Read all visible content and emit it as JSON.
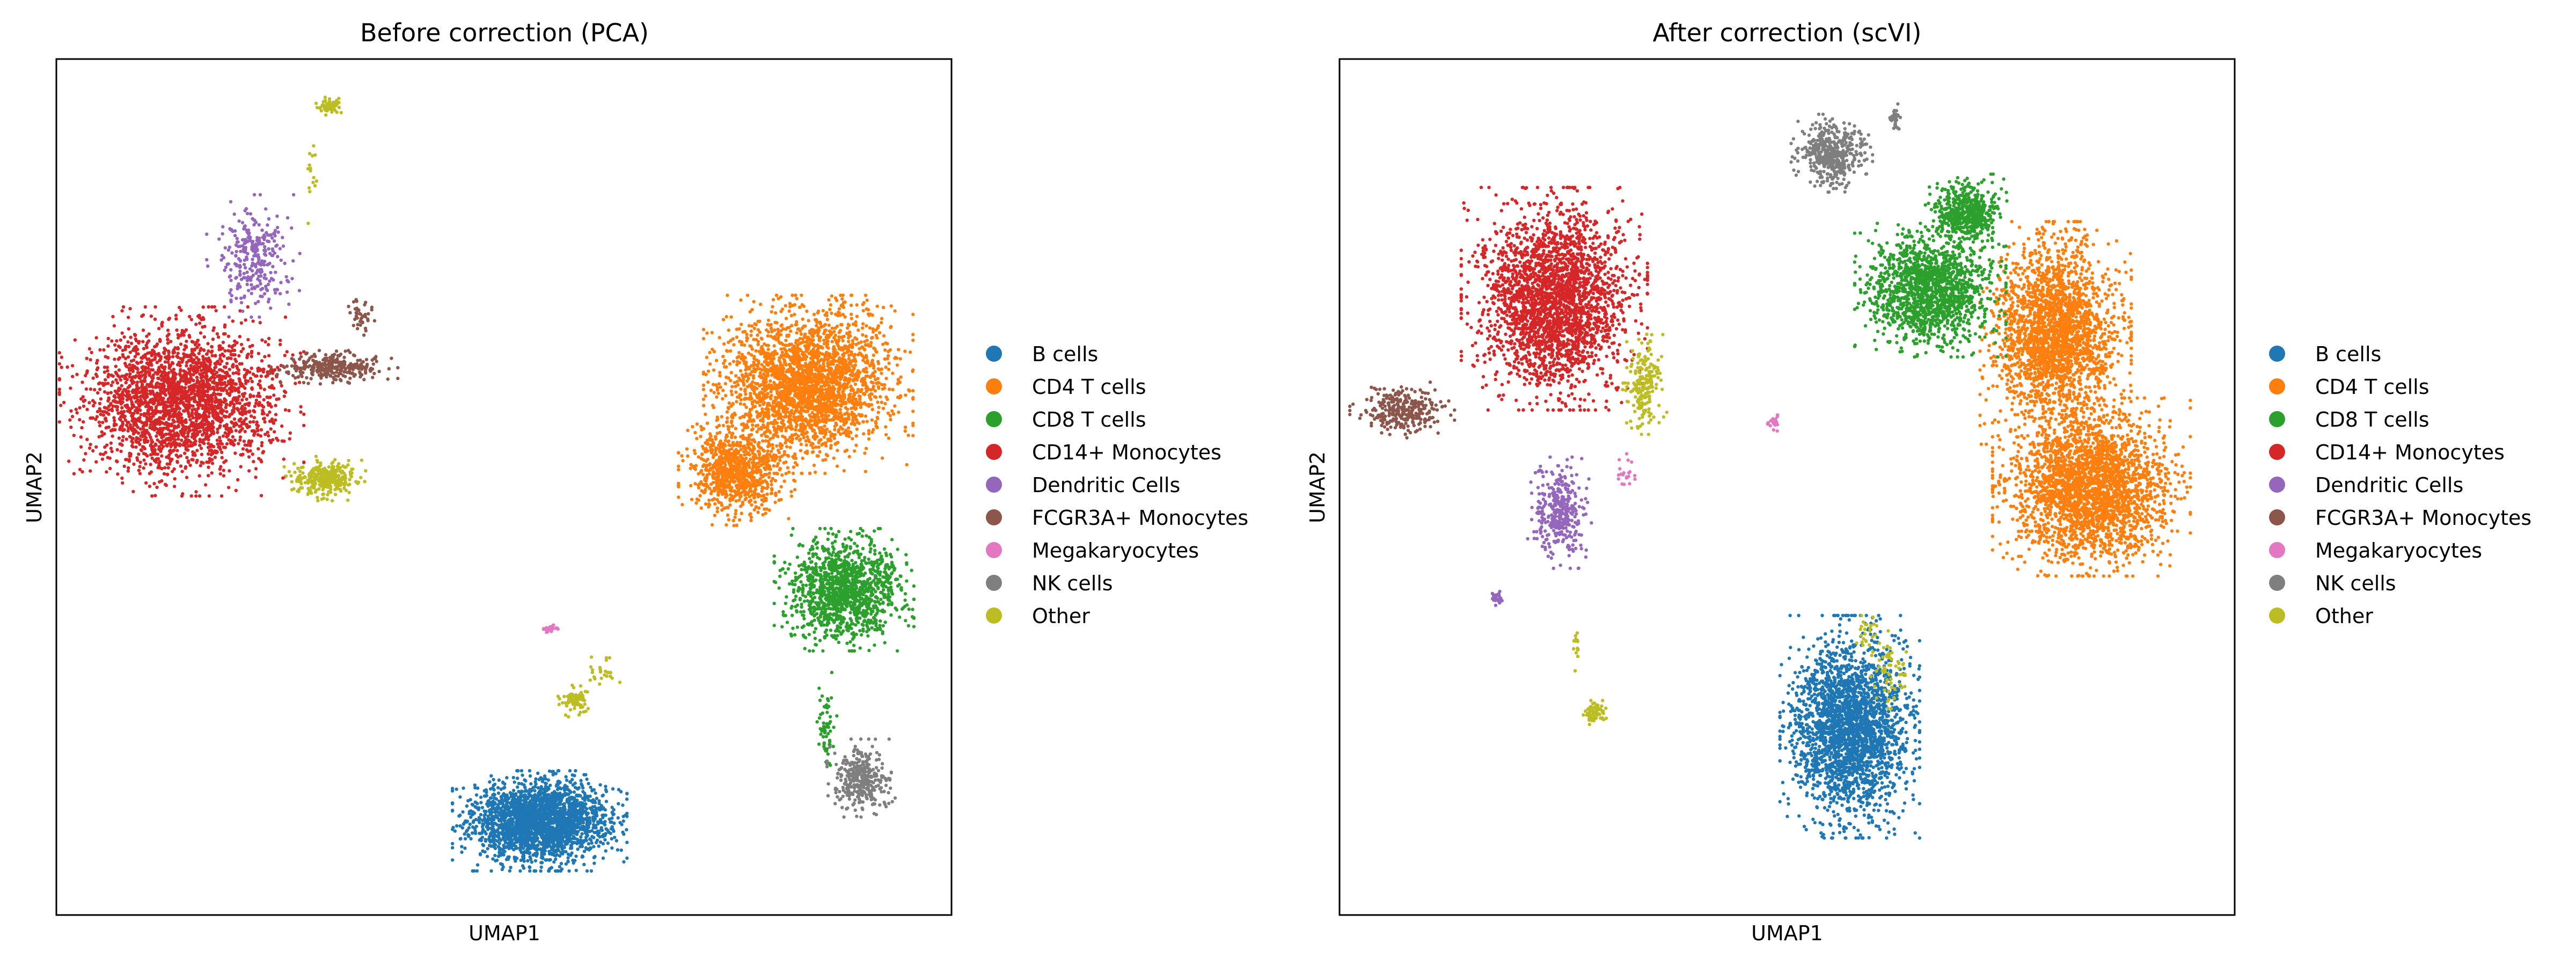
{
  "figure": {
    "legend": {
      "entries": [
        {
          "label": "B cells",
          "color": "#1f77b4"
        },
        {
          "label": "CD4 T cells",
          "color": "#ff7f0e"
        },
        {
          "label": "CD8 T cells",
          "color": "#2ca02c"
        },
        {
          "label": "CD14+ Monocytes",
          "color": "#d62728"
        },
        {
          "label": "Dendritic Cells",
          "color": "#9467bd"
        },
        {
          "label": "FCGR3A+ Monocytes",
          "color": "#8c564b"
        },
        {
          "label": "Megakaryocytes",
          "color": "#e377c2"
        },
        {
          "label": "NK cells",
          "color": "#7f7f7f"
        },
        {
          "label": "Other",
          "color": "#bcbd22"
        }
      ]
    }
  },
  "chart_data": [
    {
      "type": "scatter",
      "title": "Before correction (PCA)",
      "xlabel": "UMAP1",
      "ylabel": "UMAP2",
      "xlim": [
        0,
        100
      ],
      "ylim": [
        0,
        100
      ],
      "ticks": "none",
      "grid": false,
      "legend_position": "right",
      "series": [
        {
          "name": "B cells",
          "clusters": [
            {
              "center": [
                54,
                11
              ],
              "spread": [
                7.5,
                4.5
              ],
              "count": 2400
            }
          ]
        },
        {
          "name": "CD4 T cells",
          "clusters": [
            {
              "center": [
                84,
                62
              ],
              "spread": [
                9,
                8
              ],
              "count": 2600
            },
            {
              "center": [
                76,
                52
              ],
              "spread": [
                5,
                5
              ],
              "count": 900
            }
          ]
        },
        {
          "name": "CD8 T cells",
          "clusters": [
            {
              "center": [
                88,
                38
              ],
              "spread": [
                6,
                5.5
              ],
              "count": 1300
            },
            {
              "center": [
                86,
                22
              ],
              "spread": [
                1,
                5
              ],
              "count": 60
            }
          ]
        },
        {
          "name": "CD14+ Monocytes",
          "clusters": [
            {
              "center": [
                14,
                60
              ],
              "spread": [
                10.5,
                8.5
              ],
              "count": 2500
            }
          ]
        },
        {
          "name": "Dendritic Cells",
          "clusters": [
            {
              "center": [
                22,
                77
              ],
              "spread": [
                4,
                5.5
              ],
              "count": 300
            }
          ]
        },
        {
          "name": "FCGR3A+ Monocytes",
          "clusters": [
            {
              "center": [
                31,
                64
              ],
              "spread": [
                5.5,
                1.5
              ],
              "count": 300
            },
            {
              "center": [
                34,
                70
              ],
              "spread": [
                1.5,
                2
              ],
              "count": 40
            }
          ]
        },
        {
          "name": "Megakaryocytes",
          "clusters": [
            {
              "center": [
                55,
                33.5
              ],
              "spread": [
                0.8,
                0.5
              ],
              "count": 20
            }
          ]
        },
        {
          "name": "NK cells",
          "clusters": [
            {
              "center": [
                90,
                16
              ],
              "spread": [
                3,
                3.5
              ],
              "count": 350
            }
          ]
        },
        {
          "name": "Other",
          "clusters": [
            {
              "center": [
                30,
                51
              ],
              "spread": [
                3.5,
                2
              ],
              "count": 300
            },
            {
              "center": [
                30.5,
                94.5
              ],
              "spread": [
                1.2,
                0.8
              ],
              "count": 60
            },
            {
              "center": [
                58,
                25
              ],
              "spread": [
                1.5,
                1.5
              ],
              "count": 80
            },
            {
              "center": [
                61,
                28.5
              ],
              "spread": [
                1.5,
                1.5
              ],
              "count": 25
            },
            {
              "center": [
                28.5,
                86
              ],
              "spread": [
                0.5,
                4
              ],
              "count": 15
            }
          ]
        }
      ]
    },
    {
      "type": "scatter",
      "title": "After correction (scVI)",
      "xlabel": "UMAP1",
      "ylabel": "UMAP2",
      "xlim": [
        0,
        100
      ],
      "ylim": [
        0,
        100
      ],
      "ticks": "none",
      "grid": false,
      "legend_position": "right",
      "series": [
        {
          "name": "B cells",
          "clusters": [
            {
              "center": [
                57,
                22
              ],
              "spread": [
                6,
                10
              ],
              "count": 2500
            }
          ]
        },
        {
          "name": "CD4 T cells",
          "clusters": [
            {
              "center": [
                80,
                68
              ],
              "spread": [
                6.5,
                10
              ],
              "count": 2300
            },
            {
              "center": [
                84,
                50
              ],
              "spread": [
                8.5,
                8
              ],
              "count": 2600
            }
          ]
        },
        {
          "name": "CD8 T cells",
          "clusters": [
            {
              "center": [
                66,
                73
              ],
              "spread": [
                6.5,
                6
              ],
              "count": 1500
            },
            {
              "center": [
                70,
                82
              ],
              "spread": [
                3.5,
                3.5
              ],
              "count": 500
            }
          ]
        },
        {
          "name": "CD14+ Monocytes",
          "clusters": [
            {
              "center": [
                24,
                72
              ],
              "spread": [
                8,
                10
              ],
              "count": 2600
            }
          ]
        },
        {
          "name": "Dendritic Cells",
          "clusters": [
            {
              "center": [
                24.5,
                47
              ],
              "spread": [
                2.8,
                5
              ],
              "count": 350
            },
            {
              "center": [
                17.5,
                37
              ],
              "spread": [
                0.8,
                0.8
              ],
              "count": 25
            }
          ]
        },
        {
          "name": "FCGR3A+ Monocytes",
          "clusters": [
            {
              "center": [
                7,
                59
              ],
              "spread": [
                4.5,
                2.5
              ],
              "count": 300
            }
          ]
        },
        {
          "name": "Megakaryocytes",
          "clusters": [
            {
              "center": [
                48.5,
                57.5
              ],
              "spread": [
                0.6,
                0.9
              ],
              "count": 18
            },
            {
              "center": [
                32,
                52
              ],
              "spread": [
                1,
                2
              ],
              "count": 20
            }
          ]
        },
        {
          "name": "NK cells",
          "clusters": [
            {
              "center": [
                55,
                89
              ],
              "spread": [
                3.5,
                3.5
              ],
              "count": 450
            },
            {
              "center": [
                62,
                93
              ],
              "spread": [
                0.8,
                1.5
              ],
              "count": 30
            }
          ]
        },
        {
          "name": "Other",
          "clusters": [
            {
              "center": [
                34,
                62
              ],
              "spread": [
                2,
                4.5
              ],
              "count": 200
            },
            {
              "center": [
                28.5,
                23.5
              ],
              "spread": [
                1.2,
                1.2
              ],
              "count": 70
            },
            {
              "center": [
                61.5,
                28
              ],
              "spread": [
                2,
                4
              ],
              "count": 60
            },
            {
              "center": [
                59,
                33
              ],
              "spread": [
                1,
                2
              ],
              "count": 25
            },
            {
              "center": [
                26.5,
                32
              ],
              "spread": [
                0.4,
                3
              ],
              "count": 15
            }
          ]
        }
      ]
    }
  ]
}
